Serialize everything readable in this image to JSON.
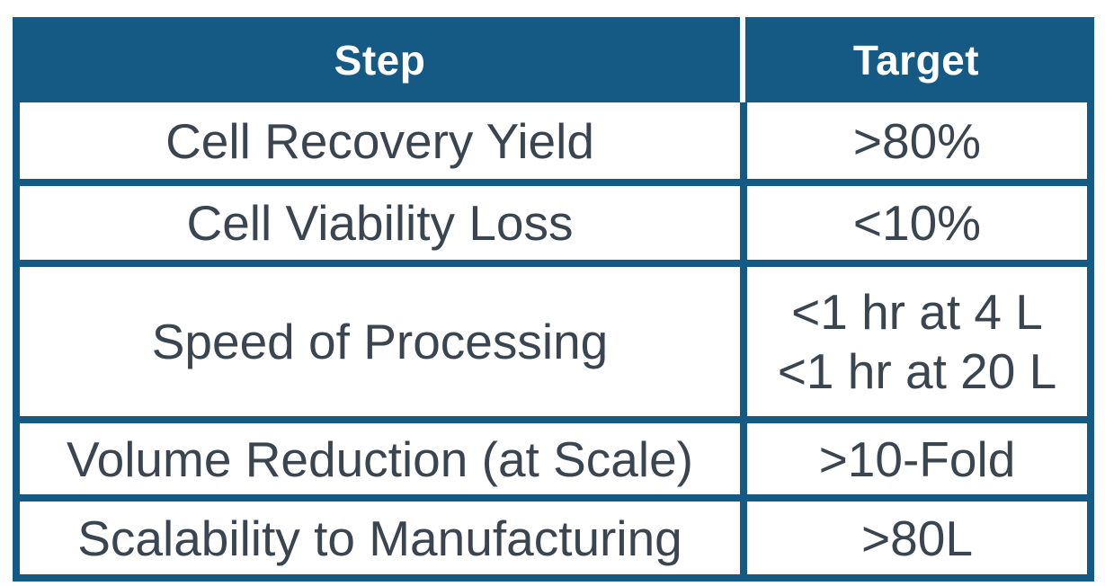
{
  "table": {
    "columns": [
      {
        "label": "Step"
      },
      {
        "label": "Target"
      }
    ],
    "rows": [
      {
        "step": "Cell Recovery Yield",
        "targets": [
          ">80%"
        ]
      },
      {
        "step": "Cell Viability Loss",
        "targets": [
          "<10%"
        ]
      },
      {
        "step": "Speed of Processing",
        "targets": [
          "<1 hr at 4 L",
          "<1 hr at 20 L"
        ]
      },
      {
        "step": "Volume Reduction (at Scale)",
        "targets": [
          ">10-Fold"
        ]
      },
      {
        "step": "Scalability to Manufacturing",
        "targets": [
          ">80L"
        ]
      }
    ],
    "colors": {
      "header_background": "#155A85",
      "header_text": "#FFFFFF",
      "border": "#155A85",
      "body_text": "#3A454F",
      "row_background": "#FFFFFF"
    }
  }
}
